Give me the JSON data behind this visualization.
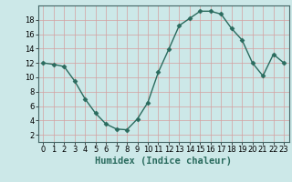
{
  "x": [
    0,
    1,
    2,
    3,
    4,
    5,
    6,
    7,
    8,
    9,
    10,
    11,
    12,
    13,
    14,
    15,
    16,
    17,
    18,
    19,
    20,
    21,
    22,
    23
  ],
  "y": [
    12,
    11.8,
    11.5,
    9.5,
    7,
    5,
    3.5,
    2.8,
    2.7,
    4.2,
    6.5,
    10.7,
    13.9,
    17.2,
    18.2,
    19.2,
    19.2,
    18.8,
    16.8,
    15.2,
    12,
    10.2,
    13.2,
    12
  ],
  "line_color": "#2a6b5e",
  "marker": "D",
  "marker_size": 2.5,
  "bg_color": "#cce8e8",
  "grid_color": "#d4a0a0",
  "xlabel": "Humidex (Indice chaleur)",
  "xlim": [
    -0.5,
    23.5
  ],
  "ylim": [
    1,
    20
  ],
  "yticks": [
    2,
    4,
    6,
    8,
    10,
    12,
    14,
    16,
    18
  ],
  "xticks": [
    0,
    1,
    2,
    3,
    4,
    5,
    6,
    7,
    8,
    9,
    10,
    11,
    12,
    13,
    14,
    15,
    16,
    17,
    18,
    19,
    20,
    21,
    22,
    23
  ],
  "xlabel_fontsize": 7.5,
  "tick_fontsize": 6.0,
  "linewidth": 1.0
}
